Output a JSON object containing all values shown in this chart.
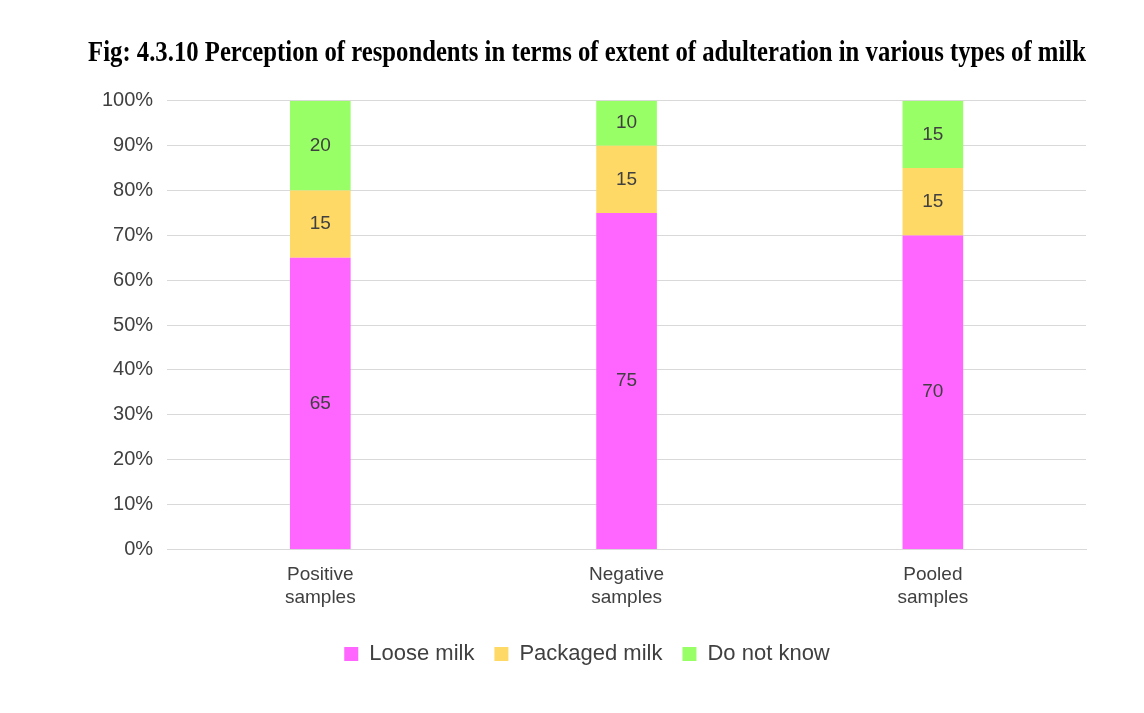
{
  "chart_data": {
    "type": "bar",
    "title": "Fig: 4.3.10 Perception of respondents in terms of extent of adulteration in various types of milk",
    "categories": [
      "Positive samples",
      "Negative samples",
      "Pooled samples"
    ],
    "series": [
      {
        "name": "Loose milk",
        "color": "#ff66ff",
        "values": [
          65,
          75,
          70
        ]
      },
      {
        "name": "Packaged milk",
        "color": "#ffd966",
        "values": [
          15,
          15,
          15
        ]
      },
      {
        "name": "Do not know",
        "color": "#99ff66",
        "values": [
          20,
          10,
          15
        ]
      }
    ],
    "stacked": true,
    "ylim": [
      0,
      100
    ],
    "yticks": [
      {
        "value": 0,
        "label": "0%"
      },
      {
        "value": 10,
        "label": "10%"
      },
      {
        "value": 20,
        "label": "20%"
      },
      {
        "value": 30,
        "label": "30%"
      },
      {
        "value": 40,
        "label": "40%"
      },
      {
        "value": 50,
        "label": "50%"
      },
      {
        "value": 60,
        "label": "60%"
      },
      {
        "value": 70,
        "label": "70%"
      },
      {
        "value": 80,
        "label": "80%"
      },
      {
        "value": 90,
        "label": "90%"
      },
      {
        "value": 100,
        "label": "100%"
      }
    ],
    "grid": "y",
    "legend": "bottom",
    "data_labels": true
  }
}
